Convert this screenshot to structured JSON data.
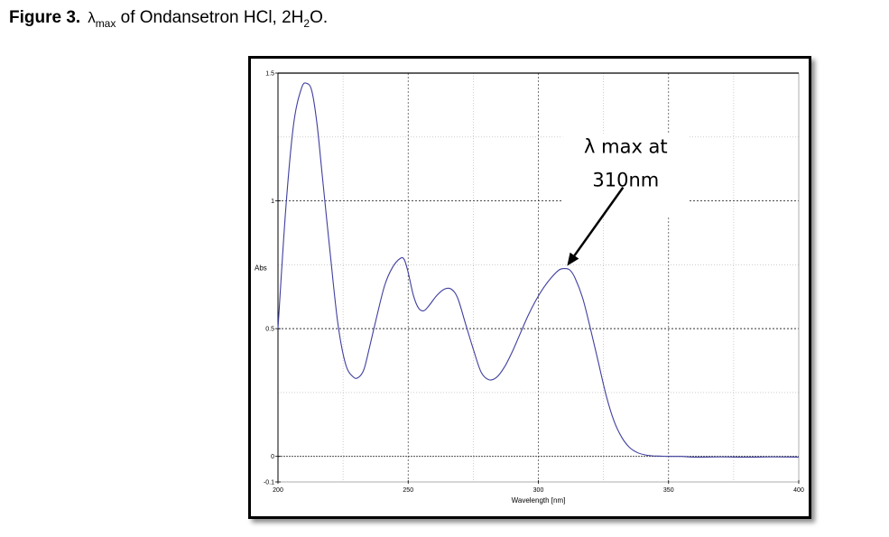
{
  "figure": {
    "label": "Figure 3.",
    "lambda": "λ",
    "lambda_sub": "max",
    "text_before_sub": " of Ondansetron HCl, 2H",
    "sub_2": "2",
    "text_after_sub": "O."
  },
  "chart_data": {
    "type": "line",
    "title": "",
    "xlabel": "Wavelength [nm]",
    "ylabel": "Abs",
    "xlim": [
      200,
      400
    ],
    "ylim": [
      -0.1,
      1.5
    ],
    "x_ticks": [
      200,
      250,
      300,
      350,
      400
    ],
    "y_ticks": [
      -0.1,
      0,
      0.5,
      1,
      1.5
    ],
    "x_tick_labels": [
      "200",
      "250",
      "300",
      "350",
      "400"
    ],
    "y_tick_labels": [
      "-0.1",
      "0",
      "0.5",
      "1",
      "1.5"
    ],
    "grid": true,
    "line_color": "#3f3f9f",
    "series": [
      {
        "x": [
          200,
          203,
          206,
          209,
          211,
          213,
          215,
          217,
          220,
          223,
          226,
          229,
          231,
          233,
          235,
          238,
          241,
          244,
          247,
          248.5,
          250,
          252,
          254,
          256,
          258,
          261,
          264,
          266.5,
          269,
          272,
          275,
          278,
          281,
          284,
          287,
          290,
          293,
          296,
          299,
          302,
          305,
          308,
          310,
          312,
          314,
          317,
          320,
          323,
          326,
          329,
          332,
          335,
          338,
          341,
          344,
          347,
          350,
          355,
          360,
          370,
          380,
          390,
          400
        ],
        "y": [
          0.5,
          0.97,
          1.3,
          1.44,
          1.46,
          1.43,
          1.3,
          1.1,
          0.8,
          0.52,
          0.36,
          0.31,
          0.31,
          0.34,
          0.42,
          0.55,
          0.67,
          0.74,
          0.775,
          0.77,
          0.72,
          0.63,
          0.58,
          0.57,
          0.59,
          0.63,
          0.655,
          0.655,
          0.62,
          0.52,
          0.42,
          0.33,
          0.3,
          0.31,
          0.35,
          0.41,
          0.48,
          0.55,
          0.61,
          0.66,
          0.7,
          0.73,
          0.735,
          0.73,
          0.7,
          0.62,
          0.5,
          0.37,
          0.24,
          0.14,
          0.075,
          0.035,
          0.015,
          0.006,
          0.002,
          0.001,
          0.0,
          0.0,
          -0.003,
          -0.002,
          -0.003,
          -0.002,
          -0.003
        ]
      }
    ],
    "annotation": {
      "line1": "λ max at",
      "line2": "310nm",
      "x": 310,
      "y": 0.735
    }
  }
}
